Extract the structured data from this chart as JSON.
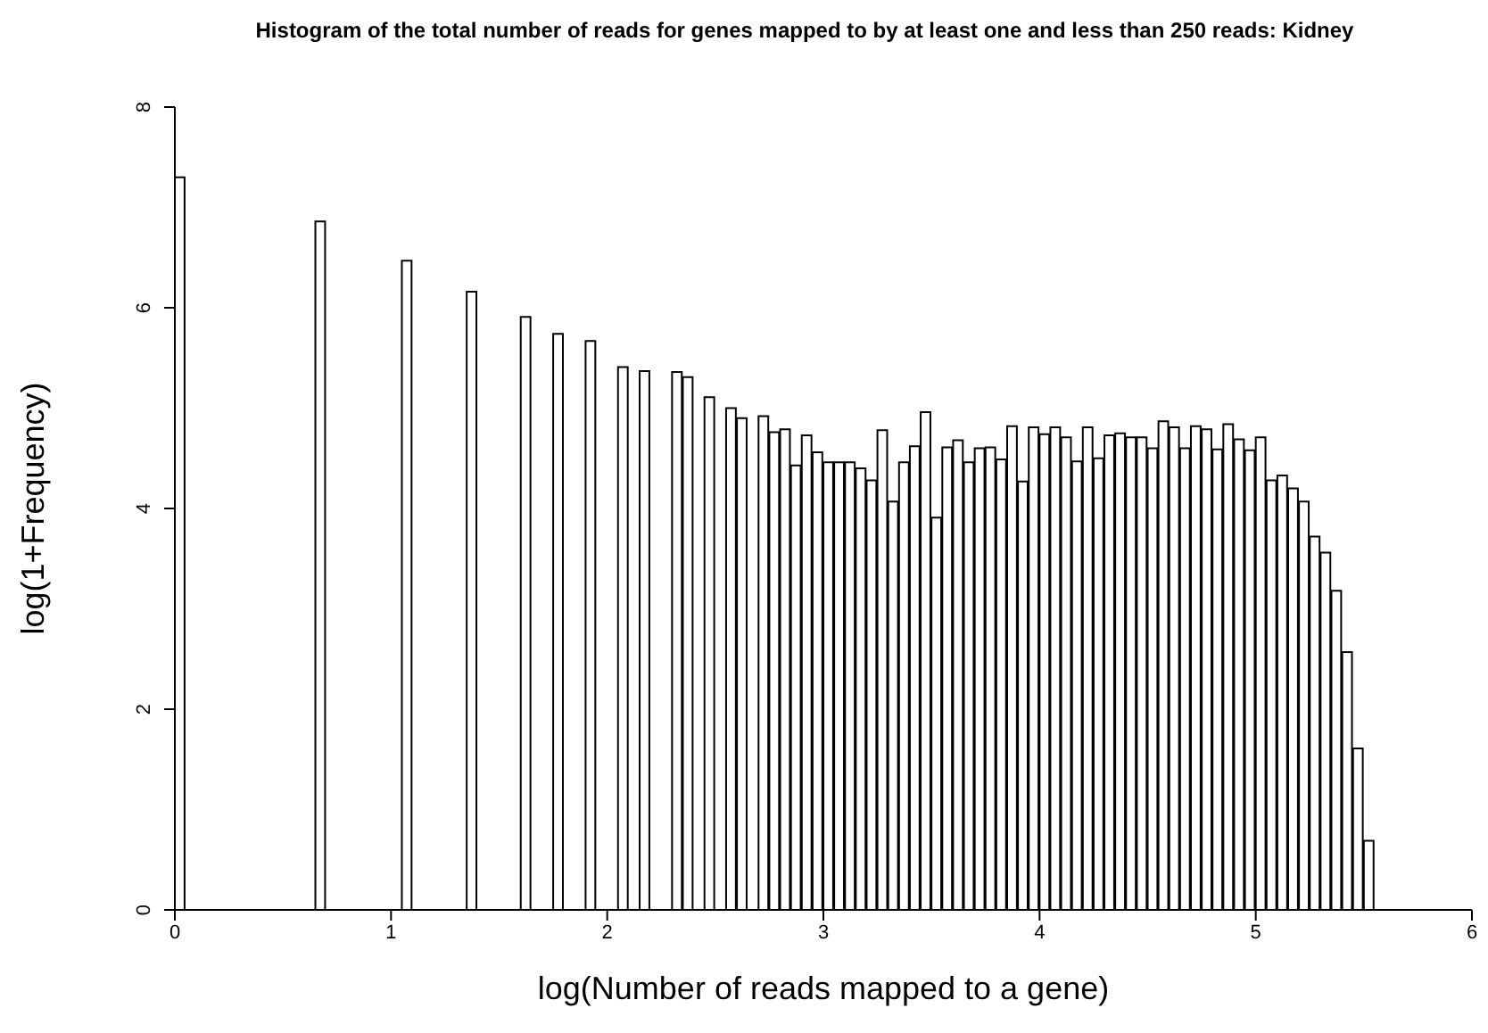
{
  "chart_data": {
    "type": "histogram",
    "title": "Histogram of the total number of reads for genes mapped to by at least one and less than 250 reads: Kidney",
    "xlabel": "log(Number of reads mapped to a gene)",
    "ylabel": "log(1+Frequency)",
    "color": "#ffffff",
    "bins": [
      0,
      0.05,
      0.1,
      0.15,
      0.2,
      0.25,
      0.3,
      0.35,
      0.4,
      0.45,
      0.5,
      0.55,
      0.6,
      0.65,
      0.7,
      0.75,
      0.8,
      0.85,
      0.9,
      0.95,
      1,
      1.05,
      1.1,
      1.15,
      1.2,
      1.25,
      1.3,
      1.35,
      1.4,
      1.45,
      1.5,
      1.55,
      1.6,
      1.65,
      1.7,
      1.75,
      1.8,
      1.85,
      1.9,
      1.95,
      2,
      2.05,
      2.1,
      2.15,
      2.2,
      2.25,
      2.3,
      2.35,
      2.4,
      2.45,
      2.5,
      2.55,
      2.6,
      2.65,
      2.7,
      2.75,
      2.8,
      2.85,
      2.9,
      2.95,
      3,
      3.05,
      3.1,
      3.15,
      3.2,
      3.25,
      3.3,
      3.35,
      3.4,
      3.45,
      3.5,
      3.55,
      3.6,
      3.65,
      3.7,
      3.75,
      3.8,
      3.85,
      3.9,
      3.95,
      4,
      4.05,
      4.1,
      4.15,
      4.2,
      4.25,
      4.3,
      4.35,
      4.4,
      4.45,
      4.5,
      4.55,
      4.6,
      4.65,
      4.7,
      4.75,
      4.8,
      4.85,
      4.9,
      4.95,
      5,
      5.05,
      5.1,
      5.15,
      5.2,
      5.25,
      5.3,
      5.35,
      5.4,
      5.45,
      5.5,
      5.55
    ],
    "values": [
      7.3,
      0,
      0,
      0,
      0,
      0,
      0,
      0,
      0,
      0,
      0,
      0,
      0,
      6.86,
      0,
      0,
      0,
      0,
      0,
      0,
      0,
      6.47,
      0,
      0,
      0,
      0,
      0,
      6.16,
      0,
      0,
      0,
      0,
      5.91,
      0,
      0,
      5.74,
      0,
      0,
      5.67,
      0,
      0,
      5.41,
      0,
      5.37,
      0,
      0,
      5.36,
      5.31,
      0,
      5.11,
      0,
      5.0,
      4.9,
      0,
      4.92,
      4.76,
      4.79,
      4.43,
      4.73,
      4.56,
      4.46,
      4.46,
      4.46,
      4.4,
      4.28,
      4.78,
      4.07,
      4.46,
      4.62,
      4.96,
      3.91,
      4.61,
      4.68,
      4.46,
      4.6,
      4.61,
      4.49,
      4.82,
      4.27,
      4.81,
      4.74,
      4.81,
      4.71,
      4.47,
      4.81,
      4.5,
      4.73,
      4.75,
      4.71,
      4.71,
      4.6,
      4.87,
      4.81,
      4.6,
      4.82,
      4.79,
      4.59,
      4.84,
      4.69,
      4.58,
      4.71,
      4.28,
      4.33,
      4.2,
      4.07,
      3.72,
      3.56,
      3.18,
      2.57,
      1.61,
      0.69
    ],
    "xlim": [
      0,
      6
    ],
    "xticks": [
      0,
      1,
      2,
      3,
      4,
      5,
      6
    ],
    "ylim": [
      0,
      8
    ],
    "yticks": [
      0,
      2,
      4,
      6,
      8
    ]
  }
}
